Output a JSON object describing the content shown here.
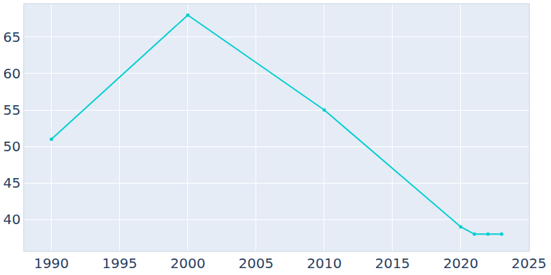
{
  "chart_data": {
    "type": "line",
    "x": [
      1990,
      2000,
      2010,
      2020,
      2021,
      2022,
      2023
    ],
    "values": [
      51,
      68,
      55,
      39,
      38,
      38,
      38
    ],
    "color": "#00ced1",
    "marker": "circle",
    "line_style": "solid",
    "xlim": [
      1988,
      2025
    ],
    "xticks": [
      1990,
      1995,
      2000,
      2005,
      2010,
      2015,
      2020,
      2025
    ],
    "ylim": [
      35.7,
      69.5
    ],
    "yticks": [
      40,
      45,
      50,
      55,
      60,
      65
    ],
    "grid": true
  }
}
